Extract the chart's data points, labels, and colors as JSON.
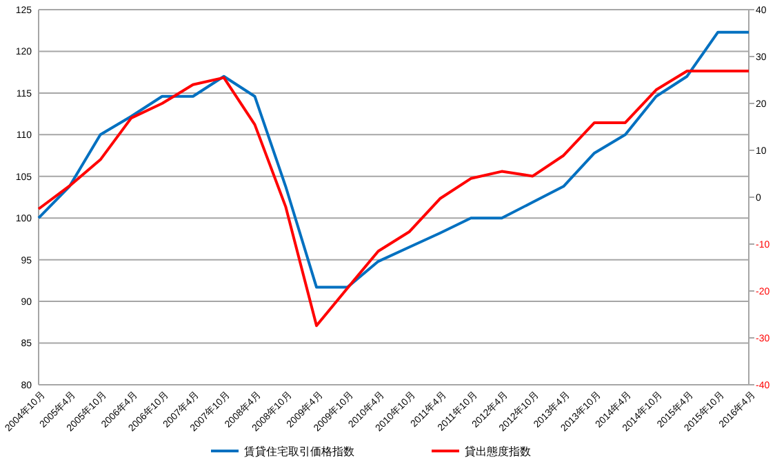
{
  "chart_data": {
    "type": "line",
    "categories": [
      "2004年10月",
      "2005年4月",
      "2005年10月",
      "2006年4月",
      "2006年10月",
      "2007年4月",
      "2007年10月",
      "2008年4月",
      "2008年10月",
      "2009年4月",
      "2009年10月",
      "2010年4月",
      "2010年10月",
      "2011年4月",
      "2011年10月",
      "2012年4月",
      "2012年10月",
      "2013年4月",
      "2013年10月",
      "2014年4月",
      "2014年10月",
      "2015年4月",
      "2015年10月",
      "2016年4月"
    ],
    "series": [
      {
        "name": "賃貸住宅取引価格指数",
        "color": "#0070c0",
        "values": [
          100,
          103.8,
          110,
          112.2,
          114.6,
          114.6,
          117,
          114.6,
          103.8,
          91.7,
          91.7,
          94.8,
          96.5,
          98.2,
          100,
          100,
          101.9,
          103.8,
          107.8,
          110,
          114.6,
          117,
          122.3,
          122.3
        ]
      },
      {
        "name": "貸出態度指数",
        "color": "#ff0000",
        "axis": "y2",
        "values": [
          -2.5,
          2.4,
          8,
          16.9,
          20,
          24,
          25.5,
          15.5,
          -2,
          -27.4,
          -19.4,
          -11.5,
          -7.4,
          -0.3,
          4,
          5.5,
          4.5,
          8.9,
          15.9,
          15.9,
          22.9,
          26.9,
          26.9,
          26.9
        ]
      }
    ],
    "ylim": [
      80,
      125
    ],
    "yticks": [
      80,
      85,
      90,
      95,
      100,
      105,
      110,
      115,
      120,
      125
    ],
    "y2lim": [
      -40,
      40
    ],
    "y2ticks": [
      -40,
      -30,
      -20,
      -10,
      0,
      10,
      20,
      30,
      40
    ],
    "grid": "y",
    "legend": "bottom",
    "marker": "none",
    "line_style": "solid"
  }
}
